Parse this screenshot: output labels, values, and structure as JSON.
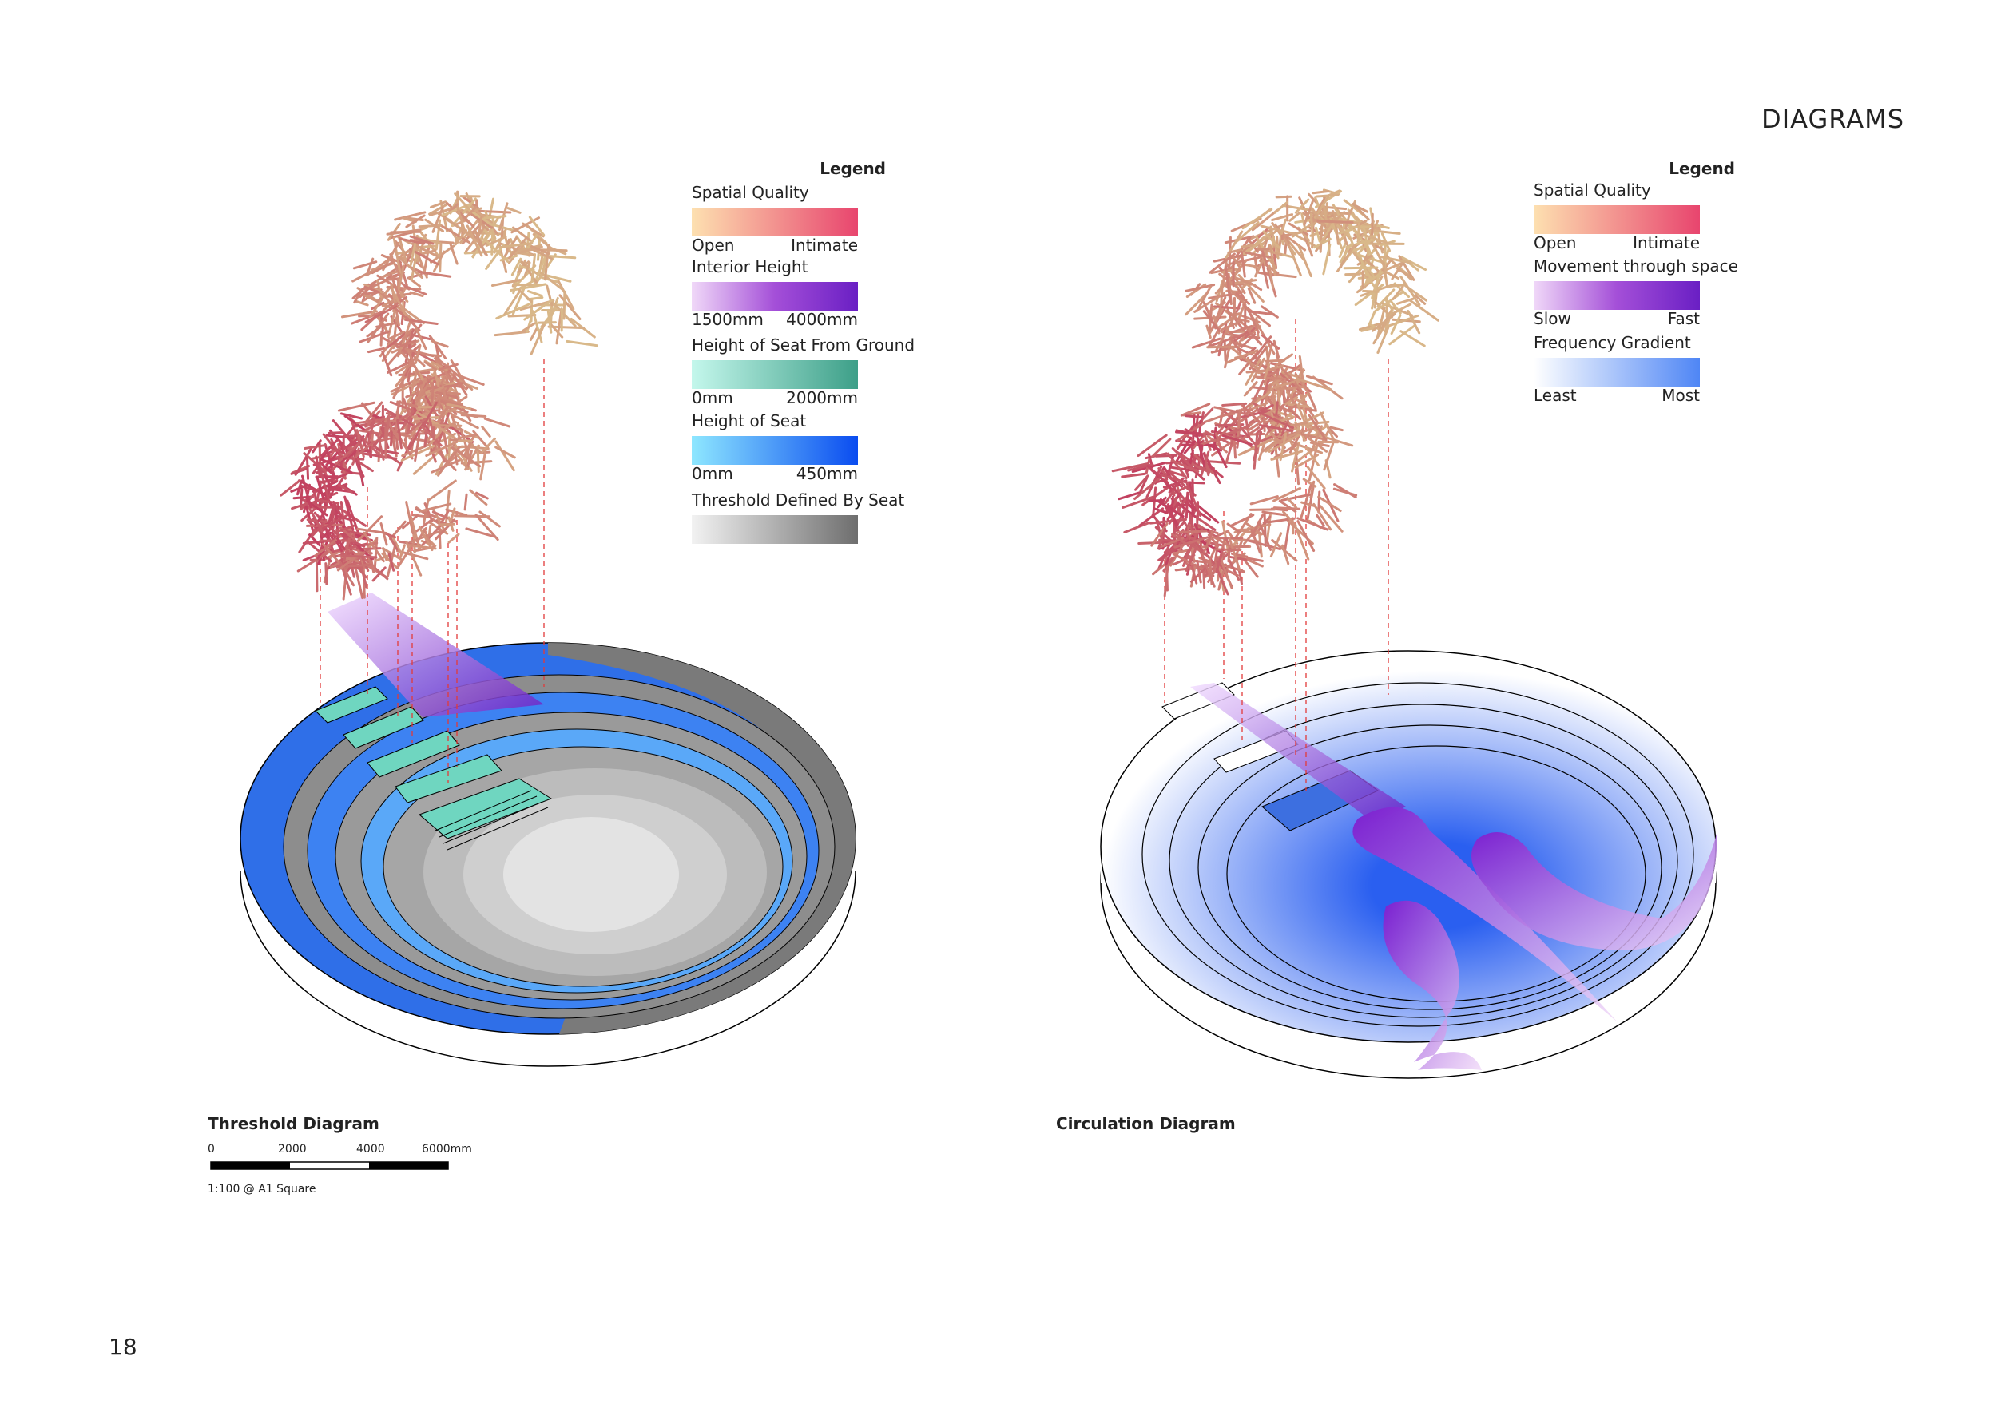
{
  "header": {
    "title": "DIAGRAMS"
  },
  "threshold_legend": {
    "title": "Legend",
    "items": [
      {
        "label": "Spatial Quality",
        "min": "Open",
        "max": "Intimate"
      },
      {
        "label": "Interior Height",
        "min": "1500mm",
        "max": "4000mm"
      },
      {
        "label": "Height of Seat From Ground",
        "min": "0mm",
        "max": "2000mm"
      },
      {
        "label": "Height of Seat",
        "min": "0mm",
        "max": "450mm"
      },
      {
        "label": "Threshold Defined By Seat"
      }
    ]
  },
  "circulation_legend": {
    "title": "Legend",
    "items": [
      {
        "label": "Spatial Quality",
        "min": "Open",
        "max": "Intimate"
      },
      {
        "label": "Movement through space",
        "min": "Slow",
        "max": "Fast"
      },
      {
        "label": "Frequency Gradient",
        "min": "Least",
        "max": "Most"
      }
    ]
  },
  "threshold_diagram": {
    "title": "Threshold Diagram",
    "scale_bar": {
      "labels": [
        "0",
        "2000",
        "4000",
        "6000mm"
      ],
      "note": "1:100 @ A1 Square"
    }
  },
  "circulation_diagram": {
    "title": "Circulation Diagram"
  },
  "page_number": "18"
}
